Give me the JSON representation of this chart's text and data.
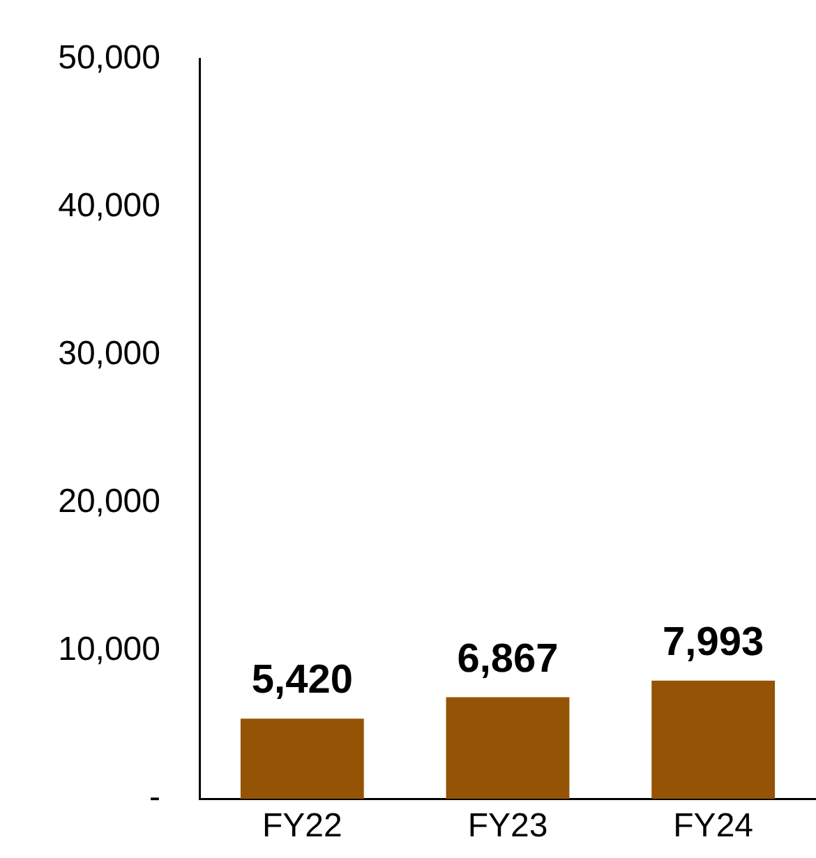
{
  "chart_data": {
    "type": "bar",
    "categories": [
      "FY22",
      "FY23",
      "FY24"
    ],
    "values": [
      5420,
      6867,
      7993
    ],
    "color": "#955306",
    "value_labels": [
      "5,420",
      "6,867",
      "7,993"
    ],
    "ylim": [
      0,
      50000
    ],
    "yticks": [
      {
        "value": 0,
        "label": "-"
      },
      {
        "value": 10000,
        "label": "10,000"
      },
      {
        "value": 20000,
        "label": "20,000"
      },
      {
        "value": 30000,
        "label": "30,000"
      },
      {
        "value": 40000,
        "label": "40,000"
      },
      {
        "value": 50000,
        "label": "50,000"
      }
    ],
    "grid": false,
    "legend": false
  }
}
